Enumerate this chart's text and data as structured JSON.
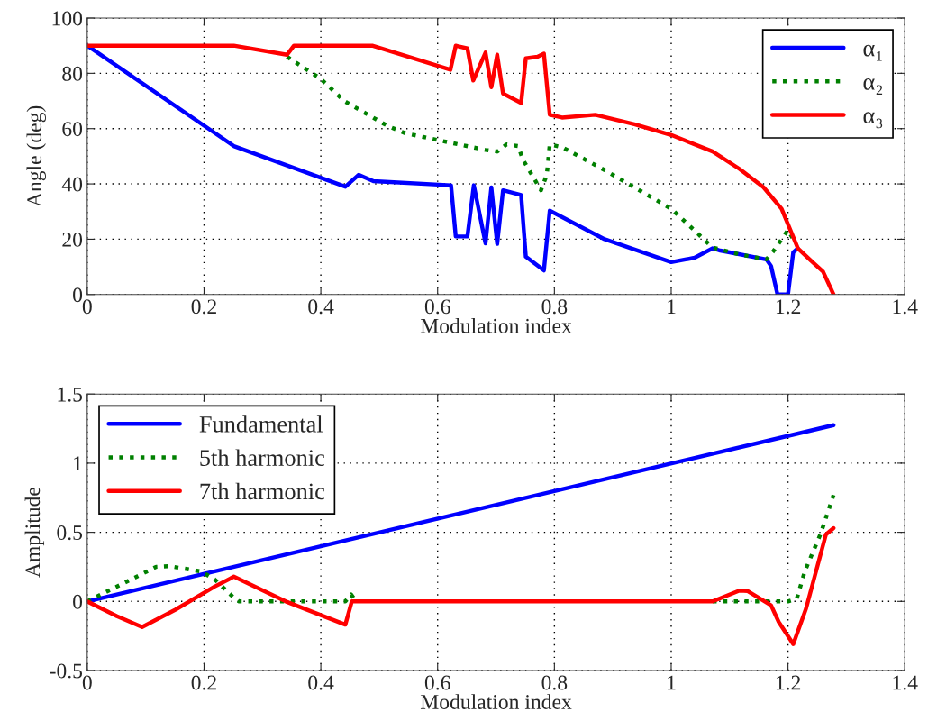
{
  "chart_data": [
    {
      "type": "line",
      "xlabel": "Modulation index",
      "ylabel": "Angle (deg)",
      "xlim": [
        0,
        1.4
      ],
      "ylim": [
        0,
        100
      ],
      "xticks": [
        0,
        0.2,
        0.4,
        0.6,
        0.8,
        1,
        1.2,
        1.4
      ],
      "yticks": [
        0,
        20,
        40,
        60,
        80,
        100
      ],
      "grid": true,
      "legend": "top right",
      "series": [
        {
          "name": "α₁",
          "color": "#0000ff",
          "line_style": "solid",
          "x": [
            0,
            0.251,
            0.442,
            0.465,
            0.49,
            0.623,
            0.631,
            0.651,
            0.662,
            0.682,
            0.692,
            0.702,
            0.712,
            0.743,
            0.751,
            0.782,
            0.792,
            0.886,
            1.0,
            1.04,
            1.071,
            1.082,
            1.163,
            1.171,
            1.182,
            1.2,
            1.209,
            1.217
          ],
          "values": [
            90,
            53.7,
            39,
            43.3,
            41,
            39.5,
            21,
            21,
            39.5,
            18.5,
            38.7,
            18.3,
            37.7,
            36,
            13.7,
            8.7,
            30.3,
            20,
            11.7,
            13.3,
            16.7,
            16,
            12.7,
            10.3,
            0,
            0,
            15.3,
            16.7
          ]
        },
        {
          "name": "α₂",
          "color": "#008000",
          "line_style": "dotted",
          "x": [
            0.342,
            0.4,
            0.44,
            0.514,
            0.545,
            0.682,
            0.702,
            0.718,
            0.738,
            0.746,
            0.777,
            0.787,
            0.792,
            0.813,
            0.886,
            1.0,
            1.071,
            1.117,
            1.163,
            1.174,
            1.2,
            1.209
          ],
          "values": [
            86,
            78,
            70,
            61,
            58.3,
            52.3,
            51.7,
            54.3,
            53.7,
            48.8,
            37.7,
            43.3,
            54.3,
            53.3,
            45,
            31,
            17,
            14.5,
            12.7,
            15.4,
            23.3,
            20
          ]
        },
        {
          "name": "α₃",
          "color": "#ff0000",
          "line_style": "solid",
          "x": [
            0,
            0.251,
            0.342,
            0.354,
            0.488,
            0.622,
            0.631,
            0.651,
            0.661,
            0.682,
            0.692,
            0.702,
            0.712,
            0.743,
            0.751,
            0.771,
            0.782,
            0.792,
            0.813,
            0.87,
            0.937,
            1.0,
            1.071,
            1.117,
            1.158,
            1.189,
            1.2,
            1.217,
            1.24,
            1.26,
            1.278
          ],
          "values": [
            90,
            90,
            86.7,
            90,
            90,
            81.3,
            90,
            89,
            77.4,
            87.5,
            75,
            86.7,
            72.7,
            69.3,
            85.4,
            86,
            87.1,
            65,
            64,
            65,
            61.6,
            57.7,
            51.7,
            45.4,
            38.8,
            31,
            25.4,
            16.7,
            12.1,
            8.3,
            0
          ]
        }
      ]
    },
    {
      "type": "line",
      "xlabel": "Modulation index",
      "ylabel": "Amplitude",
      "xlim": [
        0,
        1.4
      ],
      "ylim": [
        -0.5,
        1.5
      ],
      "xticks": [
        0,
        0.2,
        0.4,
        0.6,
        0.8,
        1,
        1.2,
        1.4
      ],
      "yticks": [
        {
          "value": -0.5,
          "label": "-0.5"
        },
        0,
        0.5,
        1,
        1.5
      ],
      "grid": true,
      "legend": "top left",
      "series": [
        {
          "name": "Fundamental",
          "color": "#0000ff",
          "line_style": "solid",
          "x": [
            0,
            1.278
          ],
          "values": [
            0,
            1.275
          ]
        },
        {
          "name": "5th harmonic",
          "color": "#008000",
          "line_style": "dotted",
          "x": [
            0,
            0.118,
            0.141,
            0.195,
            0.218,
            0.254,
            0.26,
            0.442,
            0.452,
            0.46,
            0.7,
            1.071,
            1.2,
            1.215,
            1.229,
            1.256,
            1.278
          ],
          "values": [
            0,
            0.25,
            0.255,
            0.217,
            0.16,
            0.015,
            0,
            0,
            0.05,
            0,
            null,
            0,
            0,
            0.02,
            0.22,
            0.49,
            0.77
          ]
        },
        {
          "name": "7th harmonic",
          "color": "#ff0000",
          "line_style": "solid",
          "x": [
            0,
            0.051,
            0.094,
            0.151,
            0.218,
            0.251,
            0.34,
            0.442,
            0.453,
            0.63,
            1.071,
            1.117,
            1.131,
            1.171,
            1.184,
            1.209,
            1.231,
            1.265,
            1.278
          ],
          "values": [
            0,
            -0.107,
            -0.186,
            -0.06,
            0.107,
            0.179,
            0,
            -0.168,
            0,
            0,
            0,
            0.079,
            0.075,
            -0.028,
            -0.148,
            -0.309,
            -0.05,
            0.485,
            0.53
          ]
        }
      ]
    }
  ]
}
